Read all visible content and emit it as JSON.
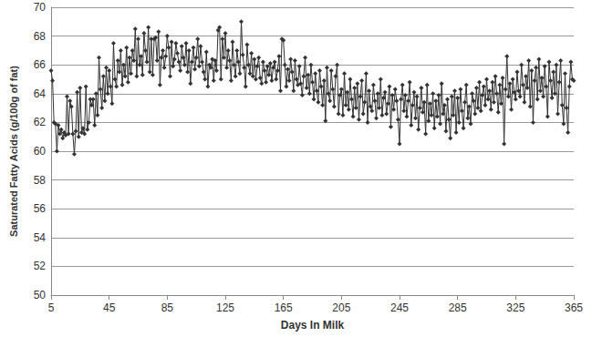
{
  "chart_data": {
    "type": "line",
    "x_label": "Days In Milk",
    "y_label": "Saturated Fatty Acids (g/100g of fat)",
    "xlim": [
      5,
      365
    ],
    "xticks": [
      5,
      45,
      85,
      125,
      165,
      205,
      245,
      285,
      325,
      365
    ],
    "ylim": [
      50,
      70
    ],
    "yticks": [
      50,
      52,
      54,
      56,
      58,
      60,
      62,
      64,
      66,
      68,
      70
    ],
    "grid": true,
    "color": "#333333",
    "marker": "diamond",
    "line_style": "solid",
    "x": [
      5,
      6,
      7,
      8,
      9,
      10,
      11,
      12,
      13,
      14,
      15,
      16,
      17,
      18,
      19,
      20,
      21,
      22,
      23,
      24,
      25,
      26,
      27,
      28,
      29,
      30,
      31,
      32,
      33,
      34,
      35,
      36,
      37,
      38,
      39,
      40,
      41,
      42,
      43,
      44,
      45,
      46,
      47,
      48,
      49,
      50,
      51,
      52,
      53,
      54,
      55,
      56,
      57,
      58,
      59,
      60,
      61,
      62,
      63,
      64,
      65,
      66,
      67,
      68,
      69,
      70,
      71,
      72,
      73,
      74,
      75,
      76,
      77,
      78,
      79,
      80,
      81,
      82,
      83,
      84,
      85,
      86,
      87,
      88,
      89,
      90,
      91,
      92,
      93,
      94,
      95,
      96,
      97,
      98,
      99,
      100,
      101,
      102,
      103,
      104,
      105,
      106,
      107,
      108,
      109,
      110,
      111,
      112,
      113,
      114,
      115,
      116,
      117,
      118,
      119,
      120,
      121,
      122,
      123,
      124,
      125,
      126,
      127,
      128,
      129,
      130,
      131,
      132,
      133,
      134,
      135,
      136,
      137,
      138,
      139,
      140,
      141,
      142,
      143,
      144,
      145,
      146,
      147,
      148,
      149,
      150,
      151,
      152,
      153,
      154,
      155,
      156,
      157,
      158,
      159,
      160,
      161,
      162,
      163,
      164,
      165,
      166,
      167,
      168,
      169,
      170,
      171,
      172,
      173,
      174,
      175,
      176,
      177,
      178,
      179,
      180,
      181,
      182,
      183,
      184,
      185,
      186,
      187,
      188,
      189,
      190,
      191,
      192,
      193,
      194,
      195,
      196,
      197,
      198,
      199,
      200,
      201,
      202,
      203,
      204,
      205,
      206,
      207,
      208,
      209,
      210,
      211,
      212,
      213,
      214,
      215,
      216,
      217,
      218,
      219,
      220,
      221,
      222,
      223,
      224,
      225,
      226,
      227,
      228,
      229,
      230,
      231,
      232,
      233,
      234,
      235,
      236,
      237,
      238,
      239,
      240,
      241,
      242,
      243,
      244,
      245,
      246,
      247,
      248,
      249,
      250,
      251,
      252,
      253,
      254,
      255,
      256,
      257,
      258,
      259,
      260,
      261,
      262,
      263,
      264,
      265,
      266,
      267,
      268,
      269,
      270,
      271,
      272,
      273,
      274,
      275,
      276,
      277,
      278,
      279,
      280,
      281,
      282,
      283,
      284,
      285,
      286,
      287,
      288,
      289,
      290,
      291,
      292,
      293,
      294,
      295,
      296,
      297,
      298,
      299,
      300,
      301,
      302,
      303,
      304,
      305,
      306,
      307,
      308,
      309,
      310,
      311,
      312,
      313,
      314,
      315,
      316,
      317,
      318,
      319,
      320,
      321,
      322,
      323,
      324,
      325,
      326,
      327,
      328,
      329,
      330,
      331,
      332,
      333,
      334,
      335,
      336,
      337,
      338,
      339,
      340,
      341,
      342,
      343,
      344,
      345,
      346,
      347,
      348,
      349,
      350,
      351,
      352,
      353,
      354,
      355,
      356,
      357,
      358,
      359,
      360,
      361,
      362,
      363,
      364,
      365
    ],
    "values": [
      65.6,
      64.9,
      62.0,
      61.9,
      60.0,
      61.8,
      61.2,
      61.5,
      60.9,
      61.3,
      61.1,
      63.8,
      61.2,
      63.5,
      63.1,
      61.2,
      59.8,
      61.4,
      64.1,
      61.0,
      64.4,
      61.3,
      61.6,
      61.2,
      64.5,
      61.5,
      62.0,
      63.6,
      63.2,
      63.6,
      61.8,
      64.0,
      62.5,
      66.5,
      64.3,
      63.0,
      65.2,
      63.5,
      65.8,
      64.0,
      65.6,
      64.5,
      63.3,
      67.5,
      65.0,
      64.5,
      66.3,
      65.5,
      67.0,
      64.6,
      66.0,
      65.2,
      67.2,
      64.8,
      66.5,
      65.4,
      67.0,
      66.3,
      68.5,
      65.2,
      67.8,
      66.0,
      66.6,
      65.3,
      68.2,
      67.0,
      66.2,
      68.6,
      65.5,
      67.8,
      65.3,
      67.8,
      67.9,
      66.3,
      68.3,
      64.6,
      66.5,
      67.0,
      65.8,
      66.6,
      68.0,
      67.2,
      65.2,
      67.6,
      65.9,
      66.4,
      67.5,
      66.8,
      66.2,
      65.6,
      67.3,
      66.5,
      66.0,
      67.5,
      65.5,
      67.0,
      64.7,
      66.2,
      67.2,
      65.7,
      66.5,
      67.8,
      65.9,
      67.3,
      66.2,
      65.5,
      65.0,
      66.9,
      64.5,
      66.0,
      65.8,
      66.4,
      64.9,
      66.3,
      65.6,
      68.4,
      68.6,
      65.0,
      67.8,
      66.5,
      68.2,
      65.8,
      67.0,
      66.3,
      64.9,
      67.6,
      66.0,
      65.2,
      67.0,
      66.2,
      65.4,
      69.0,
      66.7,
      65.8,
      64.5,
      67.4,
      66.0,
      65.4,
      66.8,
      65.2,
      66.4,
      65.0,
      65.9,
      66.5,
      65.1,
      64.7,
      66.2,
      65.6,
      64.8,
      65.9,
      65.3,
      66.1,
      64.9,
      65.8,
      66.2,
      65.0,
      65.6,
      66.6,
      64.2,
      67.8,
      67.7,
      66.0,
      64.5,
      65.7,
      64.9,
      66.4,
      65.5,
      64.2,
      66.3,
      65.0,
      64.6,
      65.9,
      64.7,
      63.9,
      65.2,
      66.5,
      64.4,
      65.3,
      64.0,
      66.0,
      64.8,
      63.6,
      65.4,
      64.2,
      63.4,
      65.6,
      64.5,
      63.2,
      64.9,
      62.1,
      65.8,
      64.0,
      63.5,
      65.6,
      64.3,
      63.1,
      65.2,
      66.0,
      62.6,
      63.9,
      64.3,
      62.5,
      65.4,
      63.2,
      64.1,
      62.9,
      65.0,
      63.6,
      62.4,
      64.4,
      63.0,
      64.7,
      62.2,
      63.8,
      64.9,
      62.6,
      63.4,
      65.4,
      62.0,
      64.2,
      63.1,
      62.8,
      64.6,
      63.5,
      62.3,
      64.0,
      63.0,
      65.0,
      62.5,
      63.7,
      64.1,
      62.6,
      63.3,
      64.5,
      61.7,
      63.9,
      62.9,
      64.3,
      63.5,
      62.2,
      60.5,
      63.6,
      64.6,
      62.8,
      63.9,
      62.4,
      63.5,
      64.8,
      61.8,
      63.2,
      64.1,
      62.3,
      63.8,
      61.5,
      63.0,
      64.4,
      62.7,
      63.4,
      61.2,
      64.6,
      62.1,
      63.3,
      62.5,
      64.0,
      61.6,
      63.5,
      62.4,
      63.9,
      61.9,
      64.7,
      62.6,
      63.2,
      61.4,
      63.6,
      62.2,
      60.9,
      63.8,
      62.5,
      64.2,
      61.3,
      63.7,
      62.0,
      64.3,
      62.8,
      61.6,
      63.4,
      64.6,
      62.3,
      63.1,
      61.9,
      64.0,
      63.5,
      62.6,
      64.4,
      63.0,
      64.8,
      62.8,
      63.9,
      64.5,
      63.2,
      65.0,
      63.6,
      64.2,
      62.9,
      64.8,
      63.4,
      65.2,
      64.0,
      62.7,
      64.6,
      63.3,
      65.1,
      60.5,
      64.3,
      66.6,
      63.8,
      64.7,
      62.9,
      65.0,
      64.1,
      63.6,
      65.5,
      64.2,
      63.8,
      66.0,
      64.6,
      63.4,
      65.2,
      64.4,
      66.3,
      63.1,
      65.6,
      62.0,
      64.9,
      65.8,
      63.6,
      66.4,
      64.2,
      65.1,
      63.8,
      65.9,
      64.5,
      62.4,
      66.2,
      64.9,
      63.7,
      65.5,
      64.0,
      66.0,
      62.6,
      64.8,
      66.3,
      63.2,
      61.9,
      65.4,
      63.0,
      61.3,
      64.5,
      66.2,
      65.0,
      64.9
    ]
  }
}
